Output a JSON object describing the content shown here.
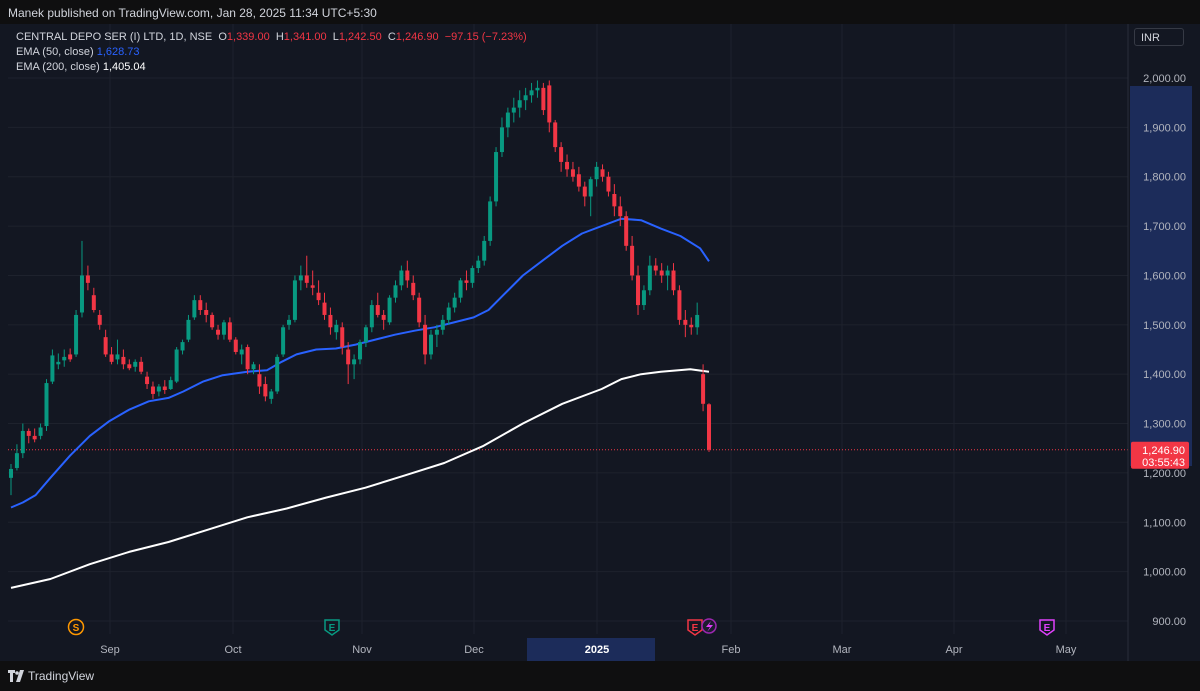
{
  "header": {
    "publisher": "Manek published on TradingView.com, Jan 28, 2025 11:34 UTC+5:30"
  },
  "legend": {
    "symbol": "CENTRAL DEPO SER (I) LTD, 1D, NSE",
    "open_label": "O",
    "open": "1,339.00",
    "high_label": "H",
    "high": "1,341.00",
    "low_label": "L",
    "low": "1,242.50",
    "close_label": "C",
    "close": "1,246.90",
    "change": "−97.15 (−7.23%)",
    "ema50_label": "EMA (50, close)",
    "ema50_value": "1,628.73",
    "ema200_label": "EMA (200, close)",
    "ema200_value": "1,405.04"
  },
  "currency": "INR",
  "price_tag": {
    "price": "1,246.90",
    "countdown": "03:55:43"
  },
  "footer": {
    "brand": "TradingView"
  },
  "colors": {
    "up": "#089981",
    "down": "#f23645",
    "ema50": "#2962ff",
    "ema200": "#ffffff",
    "background": "#131722"
  },
  "chart_data": {
    "type": "candlestick",
    "y_axis": {
      "ticks": [
        900,
        1000,
        1100,
        1200,
        1300,
        1400,
        1500,
        1600,
        1700,
        1800,
        1900,
        2000
      ],
      "tick_labels": [
        "900.00",
        "1,000.00",
        "1,100.00",
        "1,200.00",
        "1,300.00",
        "1,400.00",
        "1,500.00",
        "1,600.00",
        "1,700.00",
        "1,800.00",
        "1,900.00",
        "2,000.00"
      ]
    },
    "x_axis": {
      "labels": [
        "Sep",
        "Oct",
        "Nov",
        "Dec",
        "2025",
        "Feb",
        "Mar",
        "Apr",
        "May"
      ],
      "highlighted": "2025"
    },
    "grid": true,
    "events": [
      {
        "label": "S",
        "date": "Sep",
        "color": "#ff9800"
      },
      {
        "label": "E",
        "date": "Nov",
        "color": "#089981"
      },
      {
        "label": "E",
        "date": "Jan",
        "color": "#f23645"
      },
      {
        "label": "E",
        "date": "May",
        "color": "#e040fb"
      }
    ],
    "candles": [
      [
        1190,
        1218,
        1155,
        1208
      ],
      [
        1210,
        1258,
        1205,
        1240
      ],
      [
        1240,
        1300,
        1230,
        1285
      ],
      [
        1285,
        1290,
        1260,
        1275
      ],
      [
        1275,
        1290,
        1262,
        1268
      ],
      [
        1275,
        1300,
        1268,
        1292
      ],
      [
        1295,
        1390,
        1285,
        1382
      ],
      [
        1385,
        1450,
        1380,
        1438
      ],
      [
        1420,
        1442,
        1410,
        1425
      ],
      [
        1428,
        1450,
        1415,
        1435
      ],
      [
        1440,
        1452,
        1425,
        1430
      ],
      [
        1440,
        1530,
        1435,
        1520
      ],
      [
        1525,
        1670,
        1515,
        1600
      ],
      [
        1600,
        1620,
        1570,
        1585
      ],
      [
        1560,
        1575,
        1525,
        1530
      ],
      [
        1520,
        1530,
        1490,
        1500
      ],
      [
        1475,
        1490,
        1435,
        1440
      ],
      [
        1440,
        1455,
        1420,
        1425
      ],
      [
        1430,
        1470,
        1420,
        1440
      ],
      [
        1435,
        1450,
        1410,
        1420
      ],
      [
        1420,
        1430,
        1408,
        1412
      ],
      [
        1415,
        1430,
        1405,
        1425
      ],
      [
        1425,
        1435,
        1400,
        1405
      ],
      [
        1395,
        1405,
        1370,
        1380
      ],
      [
        1375,
        1385,
        1350,
        1360
      ],
      [
        1365,
        1380,
        1355,
        1375
      ],
      [
        1375,
        1388,
        1360,
        1368
      ],
      [
        1370,
        1395,
        1368,
        1388
      ],
      [
        1385,
        1455,
        1382,
        1450
      ],
      [
        1448,
        1470,
        1440,
        1465
      ],
      [
        1470,
        1520,
        1465,
        1510
      ],
      [
        1515,
        1560,
        1510,
        1550
      ],
      [
        1550,
        1560,
        1520,
        1530
      ],
      [
        1530,
        1545,
        1505,
        1520
      ],
      [
        1520,
        1525,
        1490,
        1495
      ],
      [
        1490,
        1500,
        1470,
        1480
      ],
      [
        1480,
        1510,
        1470,
        1505
      ],
      [
        1505,
        1515,
        1465,
        1470
      ],
      [
        1470,
        1475,
        1440,
        1445
      ],
      [
        1440,
        1460,
        1420,
        1450
      ],
      [
        1455,
        1460,
        1400,
        1410
      ],
      [
        1410,
        1425,
        1400,
        1420
      ],
      [
        1400,
        1420,
        1360,
        1375
      ],
      [
        1380,
        1395,
        1345,
        1355
      ],
      [
        1350,
        1370,
        1340,
        1365
      ],
      [
        1365,
        1440,
        1360,
        1435
      ],
      [
        1440,
        1500,
        1435,
        1495
      ],
      [
        1500,
        1520,
        1490,
        1510
      ],
      [
        1510,
        1600,
        1505,
        1590
      ],
      [
        1590,
        1620,
        1570,
        1600
      ],
      [
        1600,
        1640,
        1575,
        1585
      ],
      [
        1580,
        1610,
        1560,
        1575
      ],
      [
        1565,
        1590,
        1540,
        1550
      ],
      [
        1545,
        1565,
        1510,
        1520
      ],
      [
        1520,
        1535,
        1480,
        1495
      ],
      [
        1485,
        1510,
        1470,
        1500
      ],
      [
        1495,
        1505,
        1440,
        1455
      ],
      [
        1450,
        1465,
        1380,
        1420
      ],
      [
        1420,
        1440,
        1390,
        1430
      ],
      [
        1430,
        1470,
        1420,
        1465
      ],
      [
        1465,
        1500,
        1455,
        1495
      ],
      [
        1495,
        1550,
        1485,
        1540
      ],
      [
        1540,
        1565,
        1515,
        1520
      ],
      [
        1520,
        1530,
        1490,
        1510
      ],
      [
        1505,
        1560,
        1500,
        1555
      ],
      [
        1555,
        1590,
        1545,
        1580
      ],
      [
        1580,
        1620,
        1570,
        1610
      ],
      [
        1610,
        1630,
        1575,
        1590
      ],
      [
        1585,
        1600,
        1550,
        1560
      ],
      [
        1555,
        1565,
        1495,
        1505
      ],
      [
        1500,
        1520,
        1420,
        1440
      ],
      [
        1440,
        1490,
        1430,
        1480
      ],
      [
        1480,
        1500,
        1455,
        1490
      ],
      [
        1490,
        1520,
        1480,
        1510
      ],
      [
        1510,
        1545,
        1500,
        1535
      ],
      [
        1535,
        1565,
        1525,
        1555
      ],
      [
        1555,
        1595,
        1545,
        1590
      ],
      [
        1590,
        1610,
        1570,
        1585
      ],
      [
        1585,
        1620,
        1575,
        1615
      ],
      [
        1615,
        1640,
        1605,
        1630
      ],
      [
        1630,
        1680,
        1620,
        1670
      ],
      [
        1670,
        1760,
        1660,
        1750
      ],
      [
        1750,
        1860,
        1740,
        1850
      ],
      [
        1850,
        1920,
        1840,
        1900
      ],
      [
        1900,
        1940,
        1880,
        1930
      ],
      [
        1930,
        1960,
        1910,
        1940
      ],
      [
        1940,
        1975,
        1920,
        1955
      ],
      [
        1955,
        1980,
        1935,
        1965
      ],
      [
        1965,
        1990,
        1950,
        1975
      ],
      [
        1975,
        1995,
        1960,
        1980
      ],
      [
        1980,
        1990,
        1925,
        1935
      ],
      [
        1985,
        1995,
        1890,
        1910
      ],
      [
        1910,
        1915,
        1850,
        1860
      ],
      [
        1860,
        1870,
        1810,
        1830
      ],
      [
        1830,
        1845,
        1800,
        1815
      ],
      [
        1815,
        1830,
        1790,
        1800
      ],
      [
        1805,
        1820,
        1770,
        1780
      ],
      [
        1780,
        1790,
        1740,
        1760
      ],
      [
        1760,
        1800,
        1720,
        1795
      ],
      [
        1795,
        1830,
        1780,
        1820
      ],
      [
        1815,
        1825,
        1790,
        1800
      ],
      [
        1800,
        1810,
        1760,
        1770
      ],
      [
        1765,
        1785,
        1720,
        1740
      ],
      [
        1740,
        1760,
        1700,
        1720
      ],
      [
        1720,
        1730,
        1650,
        1660
      ],
      [
        1660,
        1680,
        1590,
        1600
      ],
      [
        1600,
        1620,
        1520,
        1540
      ],
      [
        1540,
        1580,
        1530,
        1570
      ],
      [
        1570,
        1640,
        1560,
        1620
      ],
      [
        1620,
        1635,
        1600,
        1610
      ],
      [
        1610,
        1625,
        1585,
        1600
      ],
      [
        1600,
        1620,
        1570,
        1610
      ],
      [
        1610,
        1625,
        1560,
        1570
      ],
      [
        1570,
        1580,
        1500,
        1510
      ],
      [
        1510,
        1530,
        1475,
        1500
      ],
      [
        1500,
        1515,
        1480,
        1495
      ],
      [
        1495,
        1545,
        1480,
        1520
      ],
      [
        1400,
        1420,
        1325,
        1340
      ],
      [
        1339,
        1341,
        1242.5,
        1246.9
      ]
    ],
    "ema50": [
      [
        0,
        1130
      ],
      [
        12,
        1140
      ],
      [
        25,
        1155
      ],
      [
        40,
        1190
      ],
      [
        60,
        1235
      ],
      [
        80,
        1275
      ],
      [
        100,
        1305
      ],
      [
        120,
        1328
      ],
      [
        140,
        1345
      ],
      [
        160,
        1352
      ],
      [
        175,
        1365
      ],
      [
        195,
        1385
      ],
      [
        215,
        1398
      ],
      [
        240,
        1405
      ],
      [
        260,
        1408
      ],
      [
        275,
        1425
      ],
      [
        290,
        1440
      ],
      [
        310,
        1450
      ],
      [
        330,
        1452
      ],
      [
        350,
        1460
      ],
      [
        370,
        1470
      ],
      [
        390,
        1480
      ],
      [
        410,
        1488
      ],
      [
        430,
        1495
      ],
      [
        450,
        1505
      ],
      [
        470,
        1515
      ],
      [
        485,
        1530
      ],
      [
        500,
        1560
      ],
      [
        520,
        1600
      ],
      [
        540,
        1630
      ],
      [
        560,
        1660
      ],
      [
        580,
        1685
      ],
      [
        600,
        1700
      ],
      [
        620,
        1715
      ],
      [
        640,
        1712
      ],
      [
        660,
        1695
      ],
      [
        680,
        1680
      ],
      [
        700,
        1655
      ],
      [
        709,
        1628.73
      ]
    ],
    "ema200": [
      [
        0,
        967
      ],
      [
        40,
        985
      ],
      [
        80,
        1015
      ],
      [
        120,
        1040
      ],
      [
        160,
        1060
      ],
      [
        200,
        1085
      ],
      [
        240,
        1110
      ],
      [
        280,
        1128
      ],
      [
        320,
        1150
      ],
      [
        360,
        1170
      ],
      [
        400,
        1195
      ],
      [
        440,
        1220
      ],
      [
        480,
        1255
      ],
      [
        520,
        1300
      ],
      [
        560,
        1340
      ],
      [
        600,
        1370
      ],
      [
        620,
        1390
      ],
      [
        640,
        1400
      ],
      [
        660,
        1405
      ],
      [
        690,
        1410
      ],
      [
        709,
        1405.04
      ]
    ]
  }
}
